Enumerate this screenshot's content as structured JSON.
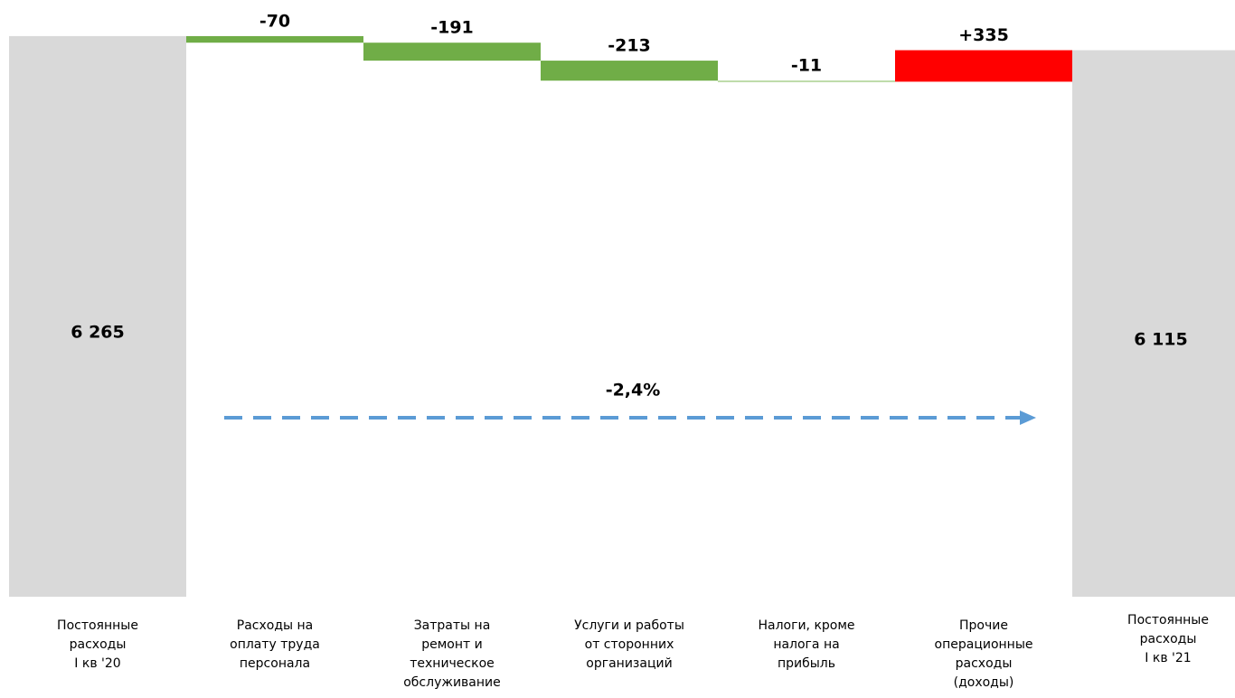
{
  "chart_data": {
    "type": "waterfall",
    "categories": [
      "Постоянные\nрасходы\nI кв '20",
      "Расходы на\nоплату труда\nперсонала",
      "Затраты на\nремонт и\nтехническое\nобслуживание",
      "Услуги и работы\nот сторонних\nорганизаций",
      "Налоги, кроме\nналога на\nприбыль",
      "Прочие\nоперационные\nрасходы\n(доходы)",
      "Постоянные\nрасходы\nI кв '21"
    ],
    "values": [
      6265,
      -70,
      -191,
      -213,
      -11,
      335,
      6115
    ],
    "value_labels": [
      "6 265",
      "-70",
      "-191",
      "-213",
      "-11",
      "+335",
      "6 115"
    ],
    "measure": [
      "total",
      "relative",
      "relative",
      "relative",
      "relative",
      "relative",
      "total"
    ],
    "colors": [
      "#d9d9d9",
      "#70ad47",
      "#70ad47",
      "#70ad47",
      "#a9d18e",
      "#ff0000",
      "#d9d9d9"
    ],
    "ylim": [
      300,
      6300
    ],
    "annotation": {
      "text": "-2,4%",
      "color": "#5b9bd5"
    }
  }
}
